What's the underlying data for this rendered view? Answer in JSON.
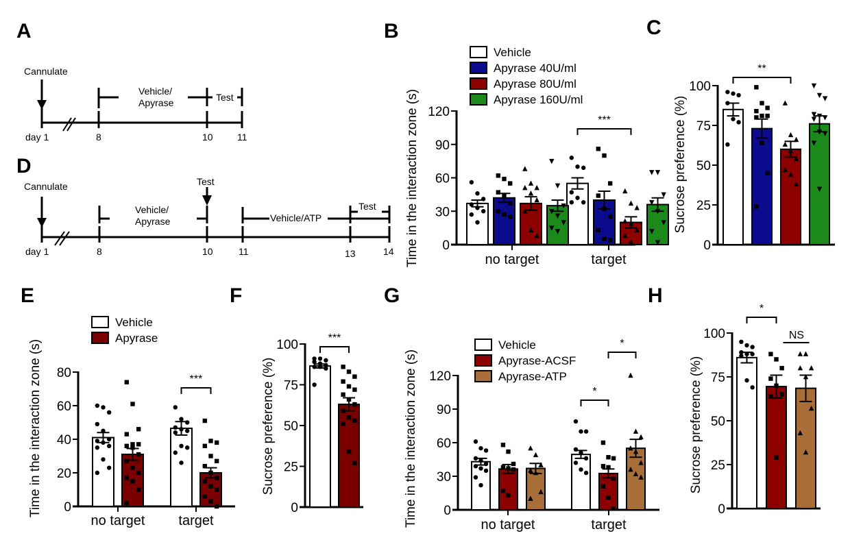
{
  "figure": {
    "panel_labels": [
      "A",
      "B",
      "C",
      "D",
      "E",
      "F",
      "G",
      "H"
    ]
  },
  "timeline_A": {
    "label": "A",
    "start_label": "Cannulate",
    "ticks": [
      "day 1",
      "8",
      "10",
      "11"
    ],
    "segments": [
      {
        "text_line1": "Vehicle/",
        "text_line2": "Apyrase"
      },
      {
        "text_line1": "Test",
        "text_line2": ""
      }
    ]
  },
  "timeline_D": {
    "label": "D",
    "start_label": "Cannulate",
    "mid_test_label": "Test",
    "ticks": [
      "day 1",
      "8",
      "10",
      "11",
      "13",
      "14"
    ],
    "segments": [
      {
        "text_line1": "Vehicle/",
        "text_line2": "Apyrase"
      },
      {
        "text_line1": "Vehicle/ATP",
        "text_line2": ""
      },
      {
        "text_line1": "Test",
        "text_line2": ""
      }
    ]
  },
  "colors": {
    "vehicle": "#ffffff",
    "apyrase40": "#0b0b8e",
    "apyrase80": "#8c0000",
    "apyrase160": "#1b8a1b",
    "apyrase": "#7a0000",
    "acsf": "#8c0000",
    "atp": "#a86e3a"
  },
  "chart_data": [
    {
      "panel": "B",
      "type": "bar",
      "ylabel": "Time in the interaction zone (s)",
      "ylim": [
        0,
        120
      ],
      "yticks": [
        0,
        30,
        60,
        90,
        120
      ],
      "categories": [
        "no target",
        "target"
      ],
      "legend_position": "top",
      "series": [
        {
          "name": "Vehicle",
          "color_key": "vehicle",
          "marker": "circle",
          "values": [
            37,
            55
          ],
          "sem": [
            3,
            5
          ],
          "points": [
            [
              56,
              46,
              41,
              36,
              33,
              30,
              27,
              20
            ],
            [
              78,
              70,
              69,
              47,
              42,
              38,
              38
            ]
          ]
        },
        {
          "name": "Apyrase 40U/ml",
          "color_key": "apyrase40",
          "marker": "square",
          "values": [
            42,
            40
          ],
          "sem": [
            4,
            8
          ],
          "points": [
            [
              62,
              59,
              55,
              47,
              44,
              37,
              30,
              27,
              25
            ],
            [
              86,
              80,
              55,
              44,
              32,
              25,
              13,
              5,
              4
            ]
          ]
        },
        {
          "name": "Apyrase 80U/ml",
          "color_key": "apyrase80",
          "marker": "triangle",
          "values": [
            37,
            20
          ],
          "sem": [
            6,
            5
          ],
          "points": [
            [
              68,
              55,
              51,
              51,
              46,
              40,
              30,
              13,
              8
            ],
            [
              48,
              37,
              33,
              21,
              19,
              13,
              8,
              2
            ]
          ]
        },
        {
          "name": "Apyrase 160U/ml",
          "color_key": "apyrase160",
          "marker": "triangle-down",
          "values": [
            35,
            36
          ],
          "sem": [
            5,
            6
          ],
          "points": [
            [
              75,
              53,
              35,
              30,
              26,
              20,
              15,
              12
            ],
            [
              65,
              65,
              45,
              38,
              30,
              20,
              12,
              2
            ]
          ]
        }
      ],
      "significance": [
        {
          "text": "***",
          "group": 1,
          "from": 0,
          "to": 2
        }
      ]
    },
    {
      "panel": "C",
      "type": "bar",
      "ylabel": "Sucrose preference (%)",
      "ylim": [
        0,
        100
      ],
      "yticks": [
        0,
        25,
        50,
        75,
        100
      ],
      "categories": [
        "Vehicle",
        "Apyrase 40U/ml",
        "Apyrase 80U/ml",
        "Apyrase 160U/ml"
      ],
      "series": [
        {
          "name": "Vehicle",
          "color_key": "vehicle",
          "marker": "circle",
          "values": [
            85
          ],
          "sem": [
            4
          ],
          "points": [
            [
              96,
              95,
              94,
              89,
              79,
              77,
              63
            ]
          ]
        },
        {
          "name": "Apyrase 40U/ml",
          "color_key": "apyrase40",
          "marker": "square",
          "values": [
            73
          ],
          "sem": [
            6
          ],
          "points": [
            [
              99,
              89,
              86,
              84,
              81,
              81,
              80,
              64,
              45,
              24
            ]
          ]
        },
        {
          "name": "Apyrase 80U/ml",
          "color_key": "apyrase80",
          "marker": "triangle",
          "values": [
            60
          ],
          "sem": [
            5
          ],
          "points": [
            [
              89,
              69,
              66,
              63,
              59,
              54,
              47,
              44,
              38
            ]
          ]
        },
        {
          "name": "Apyrase 160U/ml",
          "color_key": "apyrase160",
          "marker": "triangle-down",
          "values": [
            76
          ],
          "sem": [
            5
          ],
          "points": [
            [
              100,
              94,
              92,
              82,
              81,
              80,
              79,
              71,
              70,
              64,
              35
            ]
          ]
        }
      ],
      "significance": [
        {
          "text": "**",
          "from": 0,
          "to": 2
        }
      ]
    },
    {
      "panel": "E",
      "type": "bar",
      "ylabel": "Time in the interaction zone (s)",
      "ylim": [
        0,
        80
      ],
      "yticks": [
        0,
        20,
        40,
        60,
        80
      ],
      "categories": [
        "no target",
        "target"
      ],
      "legend_position": "top",
      "series": [
        {
          "name": "Vehicle",
          "color_key": "vehicle",
          "marker": "circle",
          "values": [
            41,
            46.5
          ],
          "sem": [
            3,
            4
          ],
          "points": [
            [
              60,
              59,
              56,
              49,
              45,
              40,
              39,
              38,
              36,
              35,
              28,
              23,
              20
            ],
            [
              59,
              52,
              50,
              47,
              46,
              45,
              44,
              36,
              35,
              32,
              26
            ]
          ]
        },
        {
          "name": "Apyrase",
          "color_key": "apyrase",
          "marker": "square",
          "values": [
            31,
            20
          ],
          "sem": [
            3.5,
            3
          ],
          "points": [
            [
              74,
              61,
              46,
              43,
              37,
              37,
              36,
              35,
              31,
              27,
              23,
              20,
              17,
              15,
              10,
              2
            ],
            [
              51,
              39,
              38,
              36,
              30,
              27,
              24,
              20,
              17,
              15,
              12,
              10,
              6,
              3,
              0
            ]
          ]
        }
      ],
      "significance": [
        {
          "text": "***",
          "group": 1,
          "from": 0,
          "to": 1
        }
      ]
    },
    {
      "panel": "F",
      "type": "bar",
      "ylabel": "Sucrose preference (%)",
      "ylim": [
        0,
        100
      ],
      "yticks": [
        0,
        25,
        50,
        75,
        100
      ],
      "categories": [
        "Vehicle",
        "Apyrase"
      ],
      "series": [
        {
          "name": "Vehicle",
          "color_key": "vehicle",
          "marker": "circle",
          "values": [
            86.5
          ],
          "sem": [
            1.2
          ],
          "points": [
            [
              91,
              91,
              90,
              89,
              88,
              87,
              86,
              86,
              85,
              75
            ]
          ]
        },
        {
          "name": "Apyrase",
          "color_key": "apyrase",
          "marker": "square",
          "values": [
            63
          ],
          "sem": [
            4
          ],
          "points": [
            [
              86,
              83,
              80,
              77,
              74,
              72,
              69,
              66,
              63,
              59,
              55,
              53,
              51,
              34,
              27
            ]
          ]
        }
      ],
      "significance": [
        {
          "text": "***",
          "from": 0,
          "to": 1
        }
      ]
    },
    {
      "panel": "G",
      "type": "bar",
      "ylabel": "Time in the interaction zone (s)",
      "ylim": [
        0,
        120
      ],
      "yticks": [
        0,
        30,
        60,
        90,
        120
      ],
      "categories": [
        "no target",
        "target"
      ],
      "legend_position": "top",
      "series": [
        {
          "name": "Vehicle",
          "color_key": "vehicle",
          "marker": "circle",
          "values": [
            43,
            49.5
          ],
          "sem": [
            3,
            3.5
          ],
          "points": [
            [
              61,
              55,
              53,
              46,
              44,
              41,
              39,
              37,
              35,
              29,
              22
            ],
            [
              79,
              70,
              70,
              54,
              51,
              46,
              42,
              36,
              33
            ]
          ]
        },
        {
          "name": "Apyrase-ACSF",
          "color_key": "acsf",
          "marker": "square",
          "values": [
            36.5,
            32.5
          ],
          "sem": [
            4,
            4
          ],
          "points": [
            [
              58,
              52,
              41,
              38,
              37,
              36,
              17,
              13
            ],
            [
              60,
              47,
              46,
              39,
              38,
              28,
              21,
              11,
              1
            ]
          ]
        },
        {
          "name": "Apyrase-ATP",
          "color_key": "atp",
          "marker": "triangle",
          "values": [
            37,
            55
          ],
          "sem": [
            4.5,
            8
          ],
          "points": [
            [
              55,
              49,
              40,
              35,
              33,
              16,
              10
            ],
            [
              120,
              70,
              65,
              55,
              52,
              42,
              36,
              32,
              29
            ]
          ]
        }
      ],
      "significance": [
        {
          "text": "*",
          "group": 1,
          "from": 0,
          "to": 1
        },
        {
          "text": "*",
          "group": 1,
          "from": 1,
          "to": 2
        }
      ]
    },
    {
      "panel": "H",
      "type": "bar",
      "ylabel": "Sucrose preference (%)",
      "ylim": [
        0,
        100
      ],
      "yticks": [
        0,
        25,
        50,
        75,
        100
      ],
      "categories": [
        "Vehicle",
        "Apyrase-ACSF",
        "Apyrase-ATP"
      ],
      "series": [
        {
          "name": "Vehicle",
          "color_key": "vehicle",
          "marker": "circle",
          "values": [
            86
          ],
          "sem": [
            3
          ],
          "points": [
            [
              95,
              93,
              92,
              89,
              88,
              88,
              87,
              73,
              69
            ]
          ]
        },
        {
          "name": "Apyrase-ACSF",
          "color_key": "acsf",
          "marker": "square",
          "values": [
            69.5
          ],
          "sem": [
            6.5
          ],
          "points": [
            [
              88,
              85,
              80,
              74,
              70,
              65,
              64,
              29
            ]
          ]
        },
        {
          "name": "Apyrase-ATP",
          "color_key": "atp",
          "marker": "triangle",
          "values": [
            68.5
          ],
          "sem": [
            7.5
          ],
          "points": [
            [
              88,
              88,
              80,
              80,
              75,
              57,
              43,
              32
            ]
          ]
        }
      ],
      "significance": [
        {
          "text": "*",
          "from": 0,
          "to": 1
        },
        {
          "text": "NS",
          "from": 1,
          "to": 2,
          "style": "line"
        }
      ]
    }
  ]
}
